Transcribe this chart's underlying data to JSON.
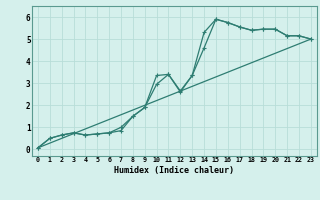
{
  "xlabel": "Humidex (Indice chaleur)",
  "ylabel": "",
  "xlim": [
    -0.5,
    23.5
  ],
  "ylim": [
    -0.3,
    6.5
  ],
  "background_color": "#d5f0ec",
  "grid_color": "#b8ddd8",
  "line_color": "#2e7d72",
  "curve1_x": [
    0,
    1,
    2,
    3,
    4,
    5,
    6,
    7,
    8,
    9,
    10,
    11,
    12,
    13,
    14,
    15,
    16,
    17,
    18,
    19,
    20,
    21,
    22,
    23
  ],
  "curve1_y": [
    0.07,
    0.5,
    0.65,
    0.75,
    0.65,
    0.7,
    0.75,
    1.0,
    1.5,
    1.9,
    3.35,
    3.4,
    2.65,
    3.35,
    5.3,
    5.9,
    5.75,
    5.55,
    5.4,
    5.45,
    5.45,
    5.15,
    5.15,
    5.0
  ],
  "curve2_x": [
    0,
    1,
    2,
    3,
    4,
    5,
    6,
    7,
    8,
    9,
    10,
    11,
    12,
    13,
    14,
    15,
    16,
    17,
    18,
    19,
    20,
    21,
    22,
    23
  ],
  "curve2_y": [
    0.07,
    0.5,
    0.65,
    0.75,
    0.65,
    0.7,
    0.75,
    0.85,
    1.5,
    1.9,
    2.95,
    3.4,
    2.6,
    3.35,
    4.6,
    5.9,
    5.75,
    5.55,
    5.4,
    5.45,
    5.45,
    5.15,
    5.15,
    5.0
  ],
  "curve3_x": [
    0,
    23
  ],
  "curve3_y": [
    0.07,
    5.0
  ],
  "xticks": [
    0,
    1,
    2,
    3,
    4,
    5,
    6,
    7,
    8,
    9,
    10,
    11,
    12,
    13,
    14,
    15,
    16,
    17,
    18,
    19,
    20,
    21,
    22,
    23
  ],
  "yticks": [
    0,
    1,
    2,
    3,
    4,
    5,
    6
  ]
}
